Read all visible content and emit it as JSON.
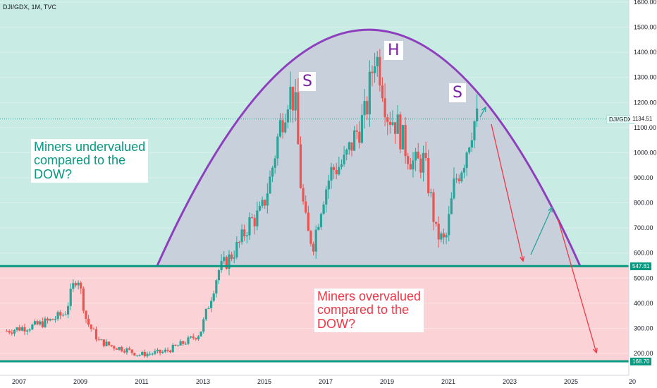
{
  "chart_title": "DJI/GDX, 1M, TVC",
  "colors": {
    "green_zone": "#c8ebe3",
    "red_zone": "#fbd3d6",
    "dome_fill": "#c8cbdb",
    "dome_line": "#8e3fbd",
    "level_line": "#089981",
    "candle_up": "#26a69a",
    "candle_down": "#ef5350",
    "arrow_red": "#f23645",
    "arrow_green": "#26a69a",
    "letters": "#7b1fa2"
  },
  "annotations": {
    "undervalued": [
      "Miners undervalued",
      "compared to the",
      "DOW?"
    ],
    "overvalued": [
      "Miners overvalued",
      "compared to the",
      "DOW?"
    ],
    "letter_s1": "S",
    "letter_h": "H",
    "letter_s2": "S"
  },
  "price_labels": {
    "symbol": "DJI/GDX",
    "current": "1134.51",
    "level_high": "547.81",
    "level_low": "168.70"
  },
  "chart_data": {
    "type": "candlestick",
    "title": "DJI/GDX, 1M, TVC",
    "xlabel": "",
    "ylabel": "",
    "x_ticks": [
      "2007",
      "2009",
      "2011",
      "2013",
      "2015",
      "2017",
      "2019",
      "2021",
      "2023",
      "2025",
      "20"
    ],
    "y_ticks": [
      "200.00",
      "300.00",
      "400.00",
      "500.00",
      "600.00",
      "700.00",
      "800.00",
      "900.00",
      "1000.00",
      "1100.00",
      "1200.00",
      "1300.00",
      "1400.00",
      "1500.00",
      "1600.00"
    ],
    "ylim": [
      140,
      1600
    ],
    "xlim": [
      2006.6,
      2027.0
    ],
    "grid": true,
    "horizontal_levels": [
      547.81,
      168.7
    ],
    "current_price": 1134.51,
    "series": [
      {
        "values": [
          [
            2006.6,
            290
          ],
          [
            2007.0,
            300
          ],
          [
            2007.5,
            310
          ],
          [
            2008.0,
            330
          ],
          [
            2008.5,
            360
          ],
          [
            2008.9,
            520
          ],
          [
            2009.2,
            330
          ],
          [
            2009.6,
            250
          ],
          [
            2010.0,
            230
          ],
          [
            2010.5,
            215
          ],
          [
            2010.9,
            195
          ],
          [
            2011.3,
            200
          ],
          [
            2011.7,
            205
          ],
          [
            2012.0,
            220
          ],
          [
            2012.5,
            250
          ],
          [
            2012.9,
            280
          ],
          [
            2013.2,
            400
          ],
          [
            2013.5,
            530
          ],
          [
            2013.8,
            570
          ],
          [
            2014.2,
            640
          ],
          [
            2014.5,
            720
          ],
          [
            2014.9,
            760
          ],
          [
            2015.2,
            900
          ],
          [
            2015.5,
            1100
          ],
          [
            2015.8,
            1250
          ],
          [
            2016.0,
            1200
          ],
          [
            2016.2,
            850
          ],
          [
            2016.4,
            680
          ],
          [
            2016.6,
            640
          ],
          [
            2016.9,
            820
          ],
          [
            2017.2,
            930
          ],
          [
            2017.6,
            960
          ],
          [
            2018.0,
            1080
          ],
          [
            2018.3,
            1150
          ],
          [
            2018.6,
            1400
          ],
          [
            2018.8,
            1320
          ],
          [
            2019.0,
            1160
          ],
          [
            2019.3,
            1120
          ],
          [
            2019.6,
            1020
          ],
          [
            2019.9,
            950
          ],
          [
            2020.2,
            970
          ],
          [
            2020.4,
            840
          ],
          [
            2020.6,
            680
          ],
          [
            2020.9,
            640
          ],
          [
            2021.2,
            880
          ],
          [
            2021.5,
            970
          ],
          [
            2021.8,
            1120
          ],
          [
            2022.0,
            1134.51
          ]
        ]
      }
    ]
  }
}
